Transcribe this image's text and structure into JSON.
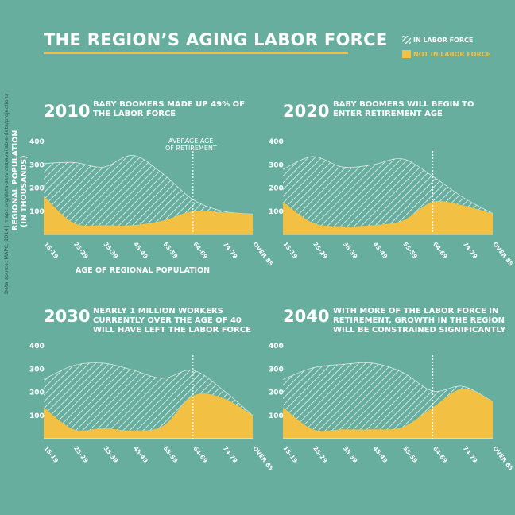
{
  "title": "THE REGION’S AGING LABOR FORCE",
  "legend": {
    "in_labor_force": "IN LABOR FORCE",
    "not_in_labor_force": "NOT IN LABOR FORCE"
  },
  "colors": {
    "background": "#67ae9e",
    "not_in_labor_force": "#f2c043",
    "in_labor_force_hatch": "#ffffff",
    "title_rule": "#f2c043"
  },
  "y_axis_label_line1": "REGIONAL POPULATION",
  "y_axis_label_line2": "(IN THOUSANDS)",
  "x_axis_label": "AGE OF REGIONAL POPULATION",
  "retirement_label_line1": "AVERAGE AGE",
  "retirement_label_line2": "OF RETIREMENT",
  "source": "Data source: MAPC, 2014 | mapc.org/data-services/available-data/projections",
  "chart_data": [
    {
      "type": "area",
      "year": "2010",
      "description": [
        "BABY BOOMERS MADE UP 49% OF",
        "THE LABOR FORCE"
      ],
      "categories": [
        "15-19",
        "25-29",
        "35-39",
        "45-49",
        "55-59",
        "64-69",
        "74-79",
        "OVER 85"
      ],
      "ylim": [
        0,
        400
      ],
      "yticks": [
        100,
        200,
        300,
        400
      ],
      "retirement_at": "64-69",
      "series": [
        {
          "name": "IN LABOR FORCE",
          "values": [
            305,
            310,
            290,
            340,
            260,
            150,
            100,
            88
          ]
        },
        {
          "name": "NOT IN LABOR FORCE",
          "values": [
            165,
            50,
            40,
            40,
            60,
            100,
            95,
            88
          ]
        }
      ]
    },
    {
      "type": "area",
      "year": "2020",
      "description": [
        "BABY BOOMERS WILL BEGIN TO",
        "ENTER RETIREMENT AGE"
      ],
      "categories": [
        "15-19",
        "25-29",
        "35-39",
        "45-49",
        "55-59",
        "64-69",
        "74-79",
        "OVER 85"
      ],
      "ylim": [
        0,
        400
      ],
      "yticks": [
        100,
        200,
        300,
        400
      ],
      "retirement_at": "64-69",
      "series": [
        {
          "name": "IN LABOR FORCE",
          "values": [
            280,
            335,
            290,
            300,
            325,
            250,
            160,
            90
          ]
        },
        {
          "name": "NOT IN LABOR FORCE",
          "values": [
            140,
            50,
            35,
            40,
            60,
            140,
            125,
            90
          ]
        }
      ]
    },
    {
      "type": "area",
      "year": "2030",
      "description": [
        "NEARLY 1 MILLION WORKERS",
        "CURRENTLY OVER THE AGE OF 40",
        "WILL HAVE LEFT THE LABOR FORCE"
      ],
      "categories": [
        "15-19",
        "25-29",
        "35-39",
        "45-49",
        "55-59",
        "64-69",
        "74-79",
        "OVER 85"
      ],
      "ylim": [
        0,
        400
      ],
      "yticks": [
        100,
        200,
        300,
        400
      ],
      "retirement_at": "64-69",
      "series": [
        {
          "name": "IN LABOR FORCE",
          "values": [
            255,
            315,
            325,
            295,
            260,
            295,
            210,
            100
          ]
        },
        {
          "name": "NOT IN LABOR FORCE",
          "values": [
            135,
            40,
            45,
            35,
            55,
            185,
            175,
            100
          ]
        }
      ]
    },
    {
      "type": "area",
      "year": "2040",
      "description": [
        "WITH MORE OF THE LABOR FORCE IN",
        "RETIREMENT, GROWTH IN THE REGION",
        "WILL BE CONSTRAINED SIGNIFICANTLY"
      ],
      "categories": [
        "15-19",
        "25-29",
        "35-39",
        "45-49",
        "55-59",
        "64-69",
        "74-79",
        "OVER 85"
      ],
      "ylim": [
        0,
        400
      ],
      "yticks": [
        100,
        200,
        300,
        400
      ],
      "retirement_at": "64-69",
      "series": [
        {
          "name": "IN LABOR FORCE",
          "values": [
            255,
            305,
            320,
            325,
            285,
            205,
            225,
            160
          ]
        },
        {
          "name": "NOT IN LABOR FORCE",
          "values": [
            135,
            40,
            40,
            40,
            50,
            135,
            215,
            160
          ]
        }
      ]
    }
  ]
}
